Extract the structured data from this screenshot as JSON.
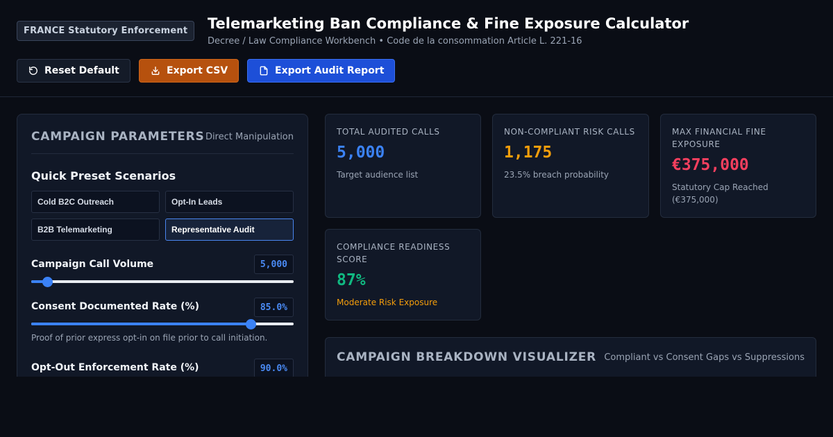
{
  "header": {
    "badge": "FRANCE Statutory Enforcement",
    "title": "Telemarketing Ban Compliance & Fine Exposure Calculator",
    "subtitle": "Decree / Law Compliance Workbench • Code de la consommation Article L. 221-16"
  },
  "toolbar": {
    "reset_label": "Reset Default",
    "reset_icon": "rotate-ccw-icon",
    "csv_label": "Export CSV",
    "csv_icon": "download-icon",
    "audit_label": "Export Audit Report",
    "audit_icon": "file-icon",
    "colors": {
      "csv": "#b6510e",
      "audit": "#1d4fd8"
    }
  },
  "params_panel": {
    "title": "CAMPAIGN PARAMETERS",
    "hint": "Direct Manipulation",
    "presets_title": "Quick Preset Scenarios",
    "presets": [
      {
        "label": "Cold B2C Outreach",
        "active": false
      },
      {
        "label": "Opt-In Leads",
        "active": false
      },
      {
        "label": "B2B Telemarketing",
        "active": false
      },
      {
        "label": "Representative Audit",
        "active": true
      }
    ],
    "call_volume": {
      "label": "Campaign Call Volume",
      "value": "5,000",
      "fraction": 0.06
    },
    "consent_rate": {
      "label": "Consent Documented Rate (%)",
      "value": "85.0%",
      "fraction": 0.836,
      "help": "Proof of prior express opt-in on file prior to call initiation."
    },
    "optout_rate": {
      "label": "Opt-Out Enforcement Rate (%)",
      "value": "90.0%"
    }
  },
  "stats": {
    "total_calls": {
      "label": "TOTAL AUDITED CALLS",
      "value": "5,000",
      "sub": "Target audience list",
      "color": "#3b82f6"
    },
    "risk_calls": {
      "label": "NON-COMPLIANT RISK CALLS",
      "value": "1,175",
      "sub": "23.5% breach probability",
      "color": "#f59e0b"
    },
    "max_fine": {
      "label": "MAX FINANCIAL FINE EXPOSURE",
      "value": "€375,000",
      "sub": "Statutory Cap Reached (€375,000)",
      "color": "#f43f5e"
    },
    "readiness": {
      "label": "COMPLIANCE READINESS SCORE",
      "value": "87%",
      "sub": "Moderate Risk Exposure",
      "color": "#10b981",
      "sub_color": "#f59e0b"
    }
  },
  "visualizer": {
    "title": "CAMPAIGN BREAKDOWN VISUALIZER",
    "hint": "Compliant vs Consent Gaps vs Suppressions"
  }
}
